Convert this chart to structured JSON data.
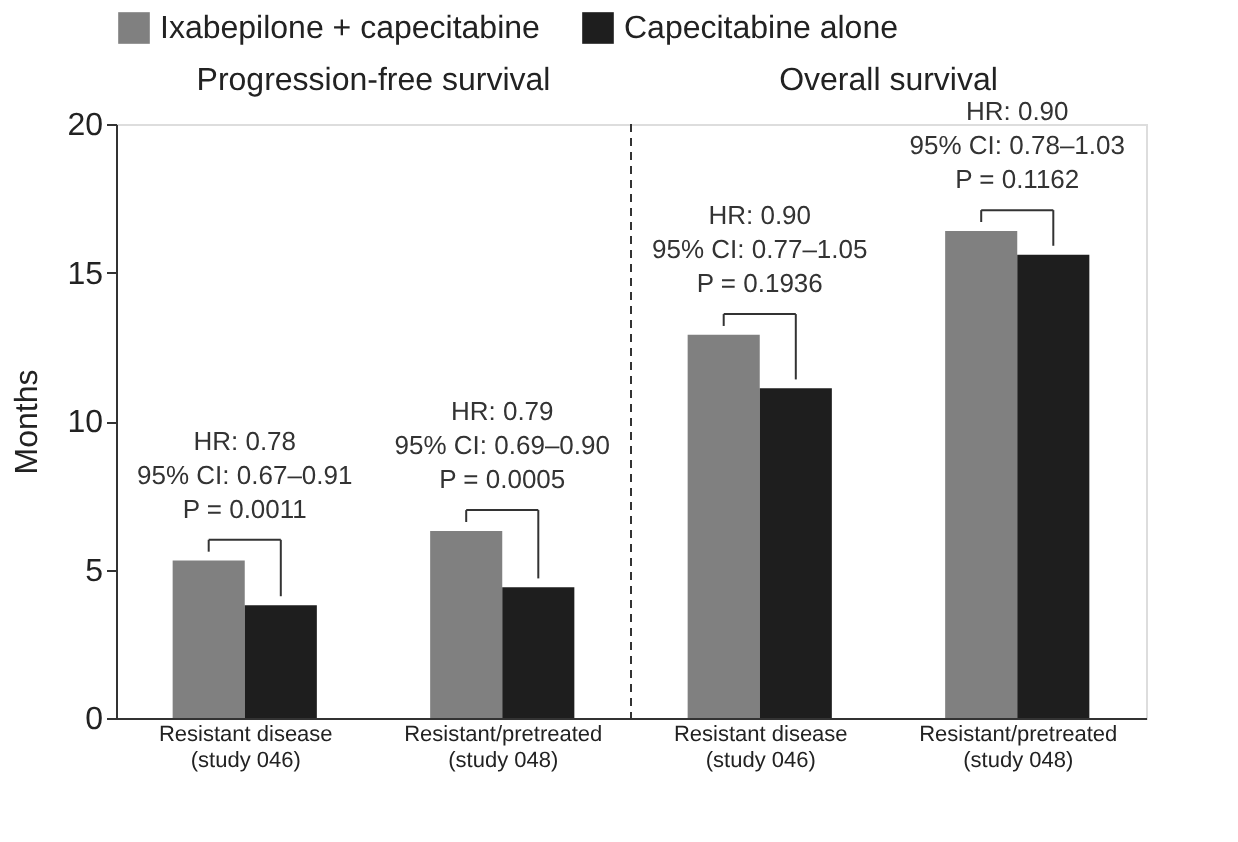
{
  "chart_data": {
    "type": "bar",
    "categories": [
      "Resistant disease\n(study 046)",
      "Resistant/pretreated\n(study 048)",
      "Resistant disease\n(study 046)",
      "Resistant/pretreated\n(study 048)"
    ],
    "series": [
      {
        "name": "Ixabepilone + capecitabine",
        "color": "#808080",
        "values": [
          5.3,
          6.3,
          12.9,
          16.4
        ]
      },
      {
        "name": "Capecitabine alone",
        "color": "#1e1e1e",
        "values": [
          3.8,
          4.4,
          11.1,
          15.6
        ]
      }
    ],
    "ylabel": "Months",
    "ylim": [
      0,
      20
    ],
    "yticks": [
      0,
      5,
      10,
      15,
      20
    ],
    "annotations": [
      "Progression-free survival",
      "Overall survival",
      "HR: 0.78\n95% CI: 0.67–0.91\nP = 0.0011",
      "HR: 0.79\n95% CI: 0.69–0.90\nP = 0.0005",
      "HR: 0.90\n95% CI: 0.77–1.05\nP = 0.1936",
      "HR: 0.90\n95% CI: 0.78–1.03\nP = 0.1162"
    ],
    "legend": "top",
    "grid": false
  }
}
